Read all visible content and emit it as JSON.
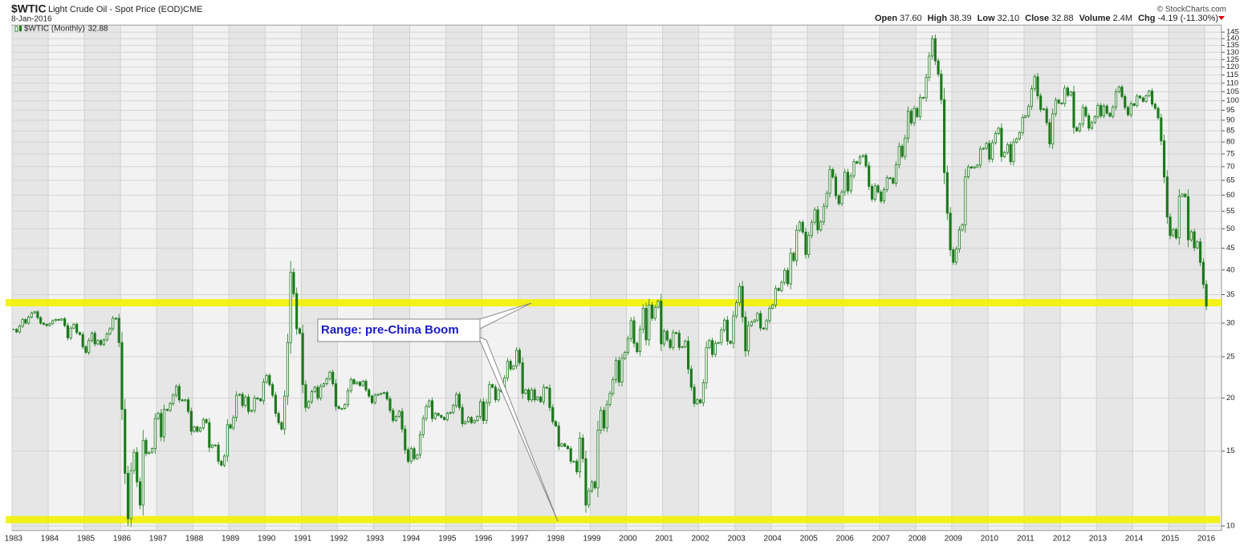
{
  "chart_data": {
    "type": "candle",
    "symbol": "$WTIC",
    "title": "Light Crude Oil - Spot Price (EOD)",
    "exchange": "CME",
    "date": "8-Jan-2016",
    "credit": "© StockCharts.com",
    "quote": [
      {
        "label": "Open",
        "value": "37.60"
      },
      {
        "label": "High",
        "value": "38.39"
      },
      {
        "label": "Low",
        "value": "32.10"
      },
      {
        "label": "Close",
        "value": "32.88"
      },
      {
        "label": "Volume",
        "value": "2.4M"
      },
      {
        "label": "Chg",
        "value": "-4.19 (-11.30%)"
      }
    ],
    "annotation": "Range: pre-China Boom",
    "log_scale": true,
    "grid": true,
    "levels": [
      33.5,
      10.35
    ],
    "level_color": "#f2f200",
    "categories": [
      "1983",
      null,
      null,
      null,
      null,
      null,
      null,
      null,
      null,
      null,
      null,
      null,
      "1984",
      null,
      null,
      null,
      null,
      null,
      null,
      null,
      null,
      null,
      null,
      null,
      "1985",
      null,
      null,
      null,
      null,
      null,
      null,
      null,
      null,
      null,
      null,
      null,
      "1986",
      null,
      null,
      null,
      null,
      null,
      null,
      null,
      null,
      null,
      null,
      null,
      "1987",
      null,
      null,
      null,
      null,
      null,
      null,
      null,
      null,
      null,
      null,
      null,
      "1988",
      null,
      null,
      null,
      null,
      null,
      null,
      null,
      null,
      null,
      null,
      null,
      "1989",
      null,
      null,
      null,
      null,
      null,
      null,
      null,
      null,
      null,
      null,
      null,
      "1990",
      null,
      null,
      null,
      null,
      null,
      null,
      null,
      null,
      null,
      null,
      null,
      "1991",
      null,
      null,
      null,
      null,
      null,
      null,
      null,
      null,
      null,
      null,
      null,
      "1992",
      null,
      null,
      null,
      null,
      null,
      null,
      null,
      null,
      null,
      null,
      null,
      "1993",
      null,
      null,
      null,
      null,
      null,
      null,
      null,
      null,
      null,
      null,
      null,
      "1994",
      null,
      null,
      null,
      null,
      null,
      null,
      null,
      null,
      null,
      null,
      null,
      "1995",
      null,
      null,
      null,
      null,
      null,
      null,
      null,
      null,
      null,
      null,
      null,
      "1996",
      null,
      null,
      null,
      null,
      null,
      null,
      null,
      null,
      null,
      null,
      null,
      "1997",
      null,
      null,
      null,
      null,
      null,
      null,
      null,
      null,
      null,
      null,
      null,
      "1998",
      null,
      null,
      null,
      null,
      null,
      null,
      null,
      null,
      null,
      null,
      null,
      "1999",
      null,
      null,
      null,
      null,
      null,
      null,
      null,
      null,
      null,
      null,
      null,
      "2000",
      null,
      null,
      null,
      null,
      null,
      null,
      null,
      null,
      null,
      null,
      null,
      "2001",
      null,
      null,
      null,
      null,
      null,
      null,
      null,
      null,
      null,
      null,
      null,
      "2002",
      null,
      null,
      null,
      null,
      null,
      null,
      null,
      null,
      null,
      null,
      null,
      "2003",
      null,
      null,
      null,
      null,
      null,
      null,
      null,
      null,
      null,
      null,
      null,
      "2004",
      null,
      null,
      null,
      null,
      null,
      null,
      null,
      null,
      null,
      null,
      null,
      "2005",
      null,
      null,
      null,
      null,
      null,
      null,
      null,
      null,
      null,
      null,
      null,
      "2006",
      null,
      null,
      null,
      null,
      null,
      null,
      null,
      null,
      null,
      null,
      null,
      "2007",
      null,
      null,
      null,
      null,
      null,
      null,
      null,
      null,
      null,
      null,
      null,
      "2008",
      null,
      null,
      null,
      null,
      null,
      null,
      null,
      null,
      null,
      null,
      null,
      "2009",
      null,
      null,
      null,
      null,
      null,
      null,
      null,
      null,
      null,
      null,
      null,
      "2010",
      null,
      null,
      null,
      null,
      null,
      null,
      null,
      null,
      null,
      null,
      null,
      "2011",
      null,
      null,
      null,
      null,
      null,
      null,
      null,
      null,
      null,
      null,
      null,
      "2012",
      null,
      null,
      null,
      null,
      null,
      null,
      null,
      null,
      null,
      null,
      null,
      "2013",
      null,
      null,
      null,
      null,
      null,
      null,
      null,
      null,
      null,
      null,
      null,
      "2014",
      null,
      null,
      null,
      null,
      null,
      null,
      null,
      null,
      null,
      null,
      null,
      "2015",
      null,
      null,
      null,
      null,
      null,
      null,
      null,
      null,
      null,
      null,
      null,
      "2016"
    ],
    "series": [
      {
        "name": "$WTIC (Monthly)",
        "color": "#1b7a1b",
        "values": [
          29.0,
          28.6,
          29.5,
          30.6,
          30.0,
          31.0,
          31.7,
          31.9,
          30.9,
          30.0,
          29.8,
          29.6,
          29.9,
          30.4,
          30.6,
          30.5,
          30.7,
          29.6,
          27.7,
          29.2,
          29.8,
          28.5,
          28.2,
          26.4,
          25.6,
          27.3,
          28.4,
          26.8,
          27.3,
          26.7,
          27.4,
          28.3,
          29.1,
          30.8,
          30.8,
          27.0,
          18.8,
          13.3,
          10.4,
          13.5,
          14.9,
          12.7,
          11.2,
          15.9,
          14.8,
          14.9,
          15.2,
          17.9,
          18.4,
          16.2,
          18.8,
          18.7,
          19.4,
          20.3,
          21.3,
          19.8,
          19.7,
          19.8,
          18.6,
          16.7,
          17.1,
          16.7,
          17.0,
          17.8,
          17.5,
          15.3,
          15.5,
          15.5,
          14.2,
          13.9,
          14.6,
          17.3,
          17.0,
          18.0,
          20.3,
          20.4,
          19.2,
          20.1,
          18.6,
          18.7,
          20.0,
          19.9,
          19.7,
          21.8,
          22.6,
          21.5,
          20.3,
          18.4,
          17.5,
          16.9,
          20.2,
          27.0,
          39.5,
          35.2,
          29.1,
          28.4,
          21.5,
          19.0,
          19.6,
          20.7,
          21.2,
          20.0,
          21.3,
          21.6,
          22.2,
          23.0,
          21.6,
          19.1,
          18.9,
          18.9,
          19.3,
          20.8,
          22.1,
          21.6,
          21.8,
          21.4,
          21.9,
          20.9,
          20.2,
          19.5,
          20.3,
          20.4,
          20.5,
          20.6,
          19.9,
          18.7,
          17.7,
          18.1,
          18.6,
          16.9,
          15.1,
          14.2,
          15.2,
          14.4,
          14.7,
          16.4,
          17.9,
          19.1,
          19.7,
          17.9,
          18.4,
          18.2,
          18.0,
          17.8,
          18.4,
          18.5,
          19.2,
          20.4,
          19.0,
          17.4,
          17.6,
          18.0,
          17.5,
          17.7,
          18.1,
          19.6,
          17.7,
          19.5,
          21.5,
          21.2,
          19.8,
          20.9,
          20.7,
          22.3,
          24.4,
          23.4,
          23.8,
          25.9,
          24.2,
          20.5,
          20.9,
          19.8,
          20.9,
          19.8,
          20.1,
          19.6,
          21.2,
          21.1,
          19.0,
          17.6,
          17.2,
          15.4,
          15.6,
          15.4,
          15.2,
          14.2,
          14.2,
          13.4,
          16.1,
          14.4,
          11.2,
          12.1,
          12.7,
          12.3,
          16.8,
          18.7,
          17.0,
          19.3,
          20.5,
          22.1,
          24.5,
          21.8,
          24.8,
          25.6,
          27.6,
          30.4,
          26.9,
          25.7,
          29.0,
          32.5,
          27.4,
          33.1,
          30.8,
          32.7,
          33.8,
          26.8,
          28.7,
          27.4,
          26.3,
          28.5,
          28.4,
          26.3,
          26.4,
          27.2,
          23.4,
          21.2,
          19.4,
          19.8,
          19.5,
          21.7,
          26.3,
          27.3,
          25.3,
          26.9,
          27.0,
          28.9,
          30.5,
          27.2,
          26.9,
          31.2,
          33.5,
          36.6,
          31.0,
          25.8,
          29.6,
          30.2,
          30.5,
          31.6,
          29.2,
          29.1,
          30.4,
          32.5,
          33.1,
          36.2,
          35.8,
          37.4,
          39.9,
          37.1,
          43.8,
          42.1,
          49.6,
          51.8,
          49.1,
          43.5,
          48.2,
          51.8,
          55.4,
          49.7,
          51.9,
          56.5,
          60.6,
          68.9,
          66.2,
          59.8,
          57.3,
          61.0,
          67.9,
          61.4,
          66.6,
          71.9,
          71.3,
          73.9,
          74.4,
          70.3,
          62.9,
          58.7,
          63.1,
          61.0,
          58.1,
          61.8,
          65.9,
          65.7,
          64.0,
          70.7,
          78.2,
          74.0,
          81.7,
          94.5,
          88.7,
          95.9,
          91.8,
          101.8,
          101.6,
          113.5,
          127.4,
          140.0,
          124.1,
          115.5,
          100.6,
          67.8,
          54.4,
          44.6,
          41.7,
          44.8,
          49.7,
          51.1,
          66.3,
          69.9,
          69.5,
          69.9,
          70.6,
          77.0,
          77.3,
          79.4,
          72.9,
          79.7,
          83.8,
          86.2,
          73.9,
          75.6,
          78.9,
          71.9,
          79.9,
          81.4,
          84.1,
          91.4,
          92.2,
          97.0,
          106.7,
          113.9,
          102.7,
          95.4,
          95.7,
          88.8,
          79.2,
          93.2,
          100.4,
          98.8,
          98.5,
          107.1,
          103.0,
          104.9,
          86.5,
          84.96,
          88.1,
          96.5,
          92.2,
          86.2,
          88.9,
          91.8,
          97.5,
          92.1,
          97.2,
          93.5,
          91.97,
          96.6,
          105.0,
          107.7,
          102.3,
          96.4,
          92.7,
          98.4,
          97.5,
          102.6,
          101.6,
          99.7,
          102.7,
          105.4,
          98.2,
          96.0,
          91.2,
          80.5,
          66.2,
          53.3,
          48.2,
          49.8,
          47.6,
          59.6,
          60.3,
          59.5,
          47.1,
          49.2,
          45.1,
          46.6,
          41.7,
          37.0,
          32.88
        ]
      }
    ],
    "ylim": [
      9.8,
      150
    ],
    "yticks": [
      10,
      15,
      20,
      25,
      30,
      35,
      40,
      45,
      50,
      55,
      60,
      65,
      70,
      75,
      80,
      85,
      90,
      95,
      100,
      105,
      110,
      115,
      120,
      125,
      130,
      135,
      140,
      145
    ]
  }
}
